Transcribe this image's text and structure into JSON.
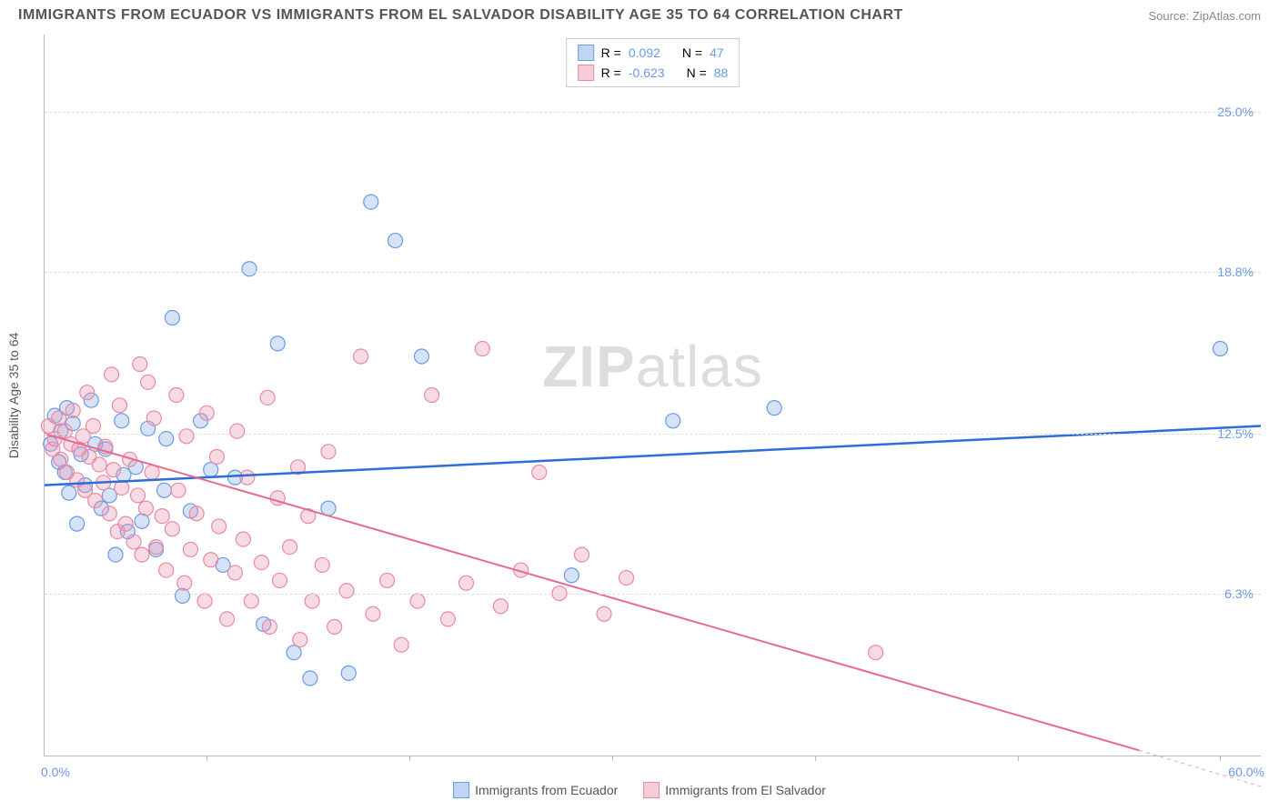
{
  "title": "IMMIGRANTS FROM ECUADOR VS IMMIGRANTS FROM EL SALVADOR DISABILITY AGE 35 TO 64 CORRELATION CHART",
  "source": "Source: ZipAtlas.com",
  "watermark_a": "ZIP",
  "watermark_b": "atlas",
  "chart": {
    "type": "scatter",
    "y_axis_label": "Disability Age 35 to 64",
    "xlim": [
      0,
      60
    ],
    "ylim": [
      0,
      28
    ],
    "x_min_label": "0.0%",
    "x_max_label": "60.0%",
    "y_ticks": [
      6.3,
      12.5,
      18.8,
      25.0
    ],
    "y_tick_labels": [
      "6.3%",
      "12.5%",
      "18.8%",
      "25.0%"
    ],
    "x_tick_positions": [
      8,
      18,
      28,
      38,
      48,
      58
    ],
    "grid_color": "#dddddd",
    "axis_color": "#bbbbbb",
    "background_color": "#ffffff",
    "series": [
      {
        "name": "Immigrants from Ecuador",
        "swatch_fill": "#c0d5f0",
        "swatch_border": "#6a9ae8",
        "marker_fill": "rgba(138,175,230,0.35)",
        "marker_stroke": "#6a9ae8",
        "marker_radius": 8,
        "line_color": "#2c6ed5",
        "line_width": 2.5,
        "r_label": "R =",
        "r_value": "0.092",
        "n_label": "N =",
        "n_value": "47",
        "trend": {
          "x1": 0,
          "y1": 10.5,
          "x2": 60,
          "y2": 12.8
        },
        "points": [
          [
            0.3,
            12.1
          ],
          [
            0.5,
            13.2
          ],
          [
            0.7,
            11.4
          ],
          [
            0.8,
            12.6
          ],
          [
            1.0,
            11.0
          ],
          [
            1.1,
            13.5
          ],
          [
            1.2,
            10.2
          ],
          [
            1.4,
            12.9
          ],
          [
            1.6,
            9.0
          ],
          [
            1.8,
            11.7
          ],
          [
            2.0,
            10.5
          ],
          [
            2.3,
            13.8
          ],
          [
            2.5,
            12.1
          ],
          [
            2.8,
            9.6
          ],
          [
            3.0,
            11.9
          ],
          [
            3.2,
            10.1
          ],
          [
            3.5,
            7.8
          ],
          [
            3.8,
            13.0
          ],
          [
            4.1,
            8.7
          ],
          [
            4.5,
            11.2
          ],
          [
            4.8,
            9.1
          ],
          [
            5.1,
            12.7
          ],
          [
            5.5,
            8.0
          ],
          [
            5.9,
            10.3
          ],
          [
            6.3,
            17.0
          ],
          [
            6.8,
            6.2
          ],
          [
            7.2,
            9.5
          ],
          [
            7.7,
            13.0
          ],
          [
            8.2,
            11.1
          ],
          [
            8.8,
            7.4
          ],
          [
            9.4,
            10.8
          ],
          [
            10.1,
            18.9
          ],
          [
            10.8,
            5.1
          ],
          [
            11.5,
            16.0
          ],
          [
            12.3,
            4.0
          ],
          [
            13.1,
            3.0
          ],
          [
            14.0,
            9.6
          ],
          [
            15.0,
            3.2
          ],
          [
            16.1,
            21.5
          ],
          [
            17.3,
            20.0
          ],
          [
            18.6,
            15.5
          ],
          [
            26.0,
            7.0
          ],
          [
            31.0,
            13.0
          ],
          [
            36.0,
            13.5
          ],
          [
            58.0,
            15.8
          ],
          [
            3.9,
            10.9
          ],
          [
            6.0,
            12.3
          ]
        ]
      },
      {
        "name": "Immigrants from El Salvador",
        "swatch_fill": "#f6cdd7",
        "swatch_border": "#e88aa5",
        "marker_fill": "rgba(235,150,175,0.35)",
        "marker_stroke": "#e88aa5",
        "marker_radius": 8,
        "line_color": "#e86a8f",
        "line_width": 2,
        "r_label": "R =",
        "r_value": "-0.623",
        "n_label": "N =",
        "n_value": "88",
        "trend": {
          "x1": 0,
          "y1": 12.5,
          "x2": 54,
          "y2": 0.2
        },
        "trend_dash": {
          "x1": 54,
          "y1": 0.2,
          "x2": 60,
          "y2": -1.2
        },
        "points": [
          [
            0.2,
            12.8
          ],
          [
            0.4,
            11.9
          ],
          [
            0.5,
            12.3
          ],
          [
            0.7,
            13.1
          ],
          [
            0.8,
            11.5
          ],
          [
            1.0,
            12.6
          ],
          [
            1.1,
            11.0
          ],
          [
            1.3,
            12.1
          ],
          [
            1.4,
            13.4
          ],
          [
            1.6,
            10.7
          ],
          [
            1.7,
            11.9
          ],
          [
            1.9,
            12.4
          ],
          [
            2.0,
            10.3
          ],
          [
            2.2,
            11.6
          ],
          [
            2.4,
            12.8
          ],
          [
            2.5,
            9.9
          ],
          [
            2.7,
            11.3
          ],
          [
            2.9,
            10.6
          ],
          [
            3.0,
            12.0
          ],
          [
            3.2,
            9.4
          ],
          [
            3.4,
            11.1
          ],
          [
            3.6,
            8.7
          ],
          [
            3.8,
            10.4
          ],
          [
            4.0,
            9.0
          ],
          [
            4.2,
            11.5
          ],
          [
            4.4,
            8.3
          ],
          [
            4.6,
            10.1
          ],
          [
            4.8,
            7.8
          ],
          [
            5.0,
            9.6
          ],
          [
            5.3,
            11.0
          ],
          [
            5.5,
            8.1
          ],
          [
            5.8,
            9.3
          ],
          [
            6.0,
            7.2
          ],
          [
            6.3,
            8.8
          ],
          [
            6.6,
            10.3
          ],
          [
            6.9,
            6.7
          ],
          [
            7.2,
            8.0
          ],
          [
            7.5,
            9.4
          ],
          [
            7.9,
            6.0
          ],
          [
            8.2,
            7.6
          ],
          [
            8.6,
            8.9
          ],
          [
            9.0,
            5.3
          ],
          [
            9.4,
            7.1
          ],
          [
            9.8,
            8.4
          ],
          [
            10.2,
            6.0
          ],
          [
            10.7,
            7.5
          ],
          [
            11.1,
            5.0
          ],
          [
            11.6,
            6.8
          ],
          [
            12.1,
            8.1
          ],
          [
            12.6,
            4.5
          ],
          [
            13.2,
            6.0
          ],
          [
            13.7,
            7.4
          ],
          [
            14.3,
            5.0
          ],
          [
            14.9,
            6.4
          ],
          [
            15.6,
            15.5
          ],
          [
            16.2,
            5.5
          ],
          [
            16.9,
            6.8
          ],
          [
            17.6,
            4.3
          ],
          [
            18.4,
            6.0
          ],
          [
            19.1,
            14.0
          ],
          [
            19.9,
            5.3
          ],
          [
            20.8,
            6.7
          ],
          [
            21.6,
            15.8
          ],
          [
            22.5,
            5.8
          ],
          [
            23.5,
            7.2
          ],
          [
            24.4,
            11.0
          ],
          [
            25.4,
            6.3
          ],
          [
            26.5,
            7.8
          ],
          [
            27.6,
            5.5
          ],
          [
            28.7,
            6.9
          ],
          [
            41.0,
            4.0
          ],
          [
            5.1,
            14.5
          ],
          [
            6.5,
            14.0
          ],
          [
            8.0,
            13.3
          ],
          [
            9.5,
            12.6
          ],
          [
            11.0,
            13.9
          ],
          [
            12.5,
            11.2
          ],
          [
            14.0,
            11.8
          ],
          [
            3.3,
            14.8
          ],
          [
            4.7,
            15.2
          ],
          [
            2.1,
            14.1
          ],
          [
            3.7,
            13.6
          ],
          [
            5.4,
            13.1
          ],
          [
            7.0,
            12.4
          ],
          [
            8.5,
            11.6
          ],
          [
            10.0,
            10.8
          ],
          [
            11.5,
            10.0
          ],
          [
            13.0,
            9.3
          ]
        ]
      }
    ]
  },
  "legend_bottom": [
    {
      "label": "Immigrants from Ecuador",
      "fill": "#c0d5f0",
      "border": "#6a9ae8"
    },
    {
      "label": "Immigrants from El Salvador",
      "fill": "#f6cdd7",
      "border": "#e88aa5"
    }
  ]
}
